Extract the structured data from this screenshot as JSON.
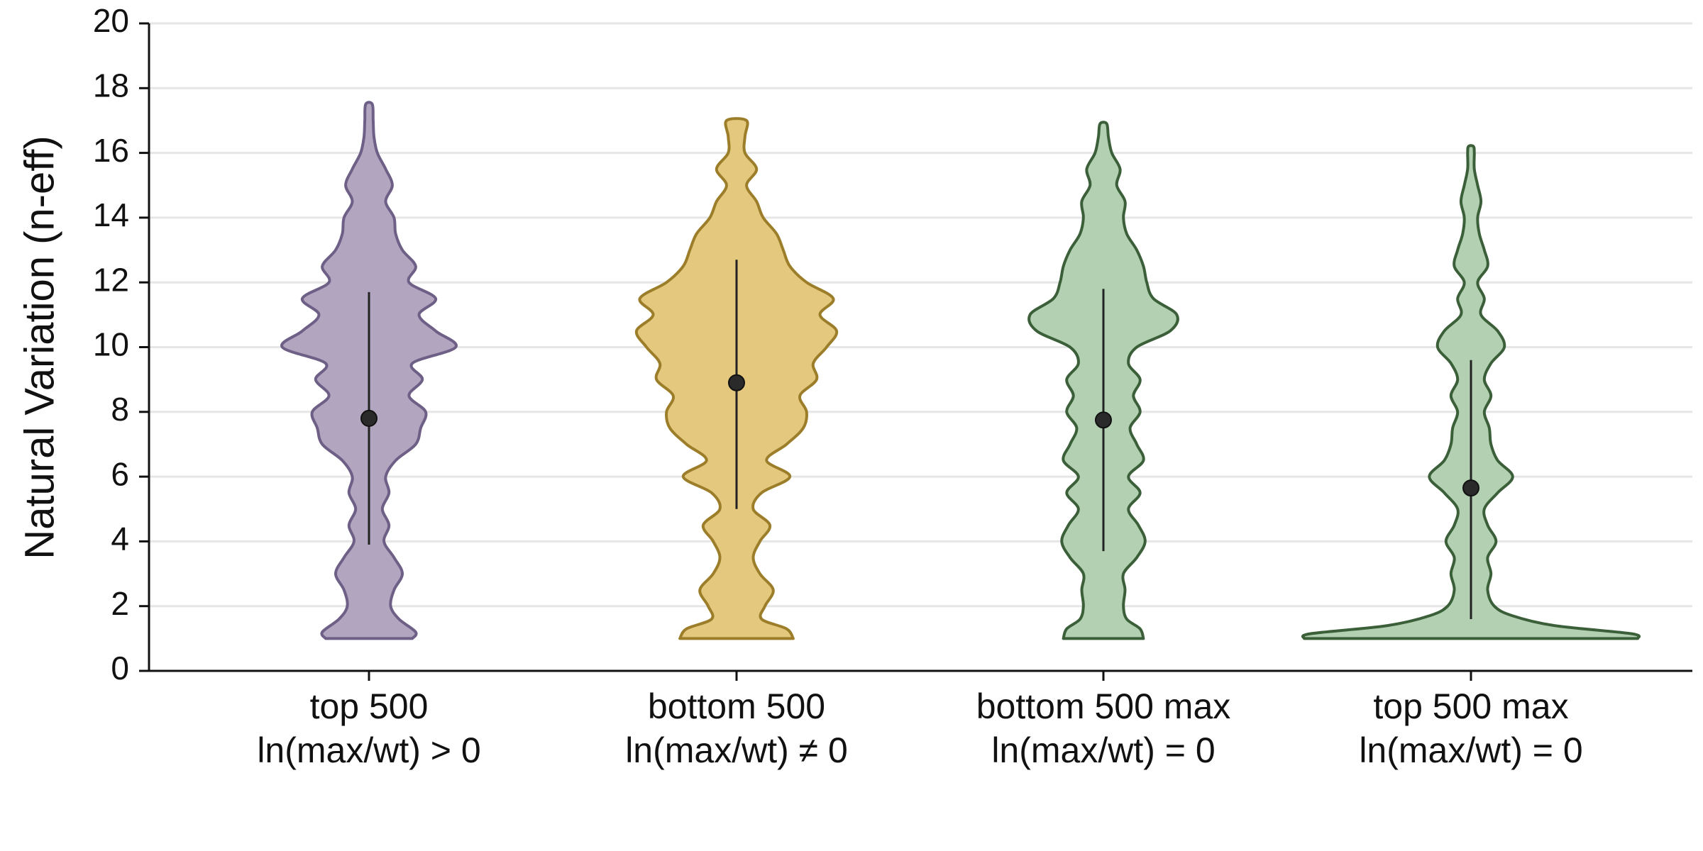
{
  "chart_data": {
    "type": "violin",
    "ylabel": "Natural Variation (n-eff)",
    "ylim": [
      0,
      20
    ],
    "yticks": [
      0,
      2,
      4,
      6,
      8,
      10,
      12,
      14,
      16,
      18,
      20
    ],
    "grid": true,
    "legend": "none",
    "series": [
      {
        "label_line1": "top 500",
        "label_line2": "ln(max/wt) > 0",
        "fill": "#b2a5c0",
        "edge": "#6e5f86",
        "median": 7.8,
        "whisker": [
          3.9,
          11.7
        ],
        "range": [
          1.0,
          17.5
        ],
        "profile": [
          [
            1.0,
            0.26
          ],
          [
            1.2,
            0.28
          ],
          [
            1.6,
            0.18
          ],
          [
            2.0,
            0.13
          ],
          [
            2.5,
            0.15
          ],
          [
            3.0,
            0.2
          ],
          [
            3.5,
            0.15
          ],
          [
            4.0,
            0.09
          ],
          [
            4.5,
            0.12
          ],
          [
            5.0,
            0.08
          ],
          [
            5.5,
            0.12
          ],
          [
            6.0,
            0.1
          ],
          [
            6.5,
            0.16
          ],
          [
            7.0,
            0.28
          ],
          [
            7.5,
            0.31
          ],
          [
            8.0,
            0.34
          ],
          [
            8.5,
            0.24
          ],
          [
            9.0,
            0.32
          ],
          [
            9.5,
            0.26
          ],
          [
            10.0,
            0.52
          ],
          [
            10.5,
            0.4
          ],
          [
            11.0,
            0.3
          ],
          [
            11.5,
            0.4
          ],
          [
            12.0,
            0.24
          ],
          [
            12.5,
            0.28
          ],
          [
            13.0,
            0.2
          ],
          [
            13.5,
            0.16
          ],
          [
            14.0,
            0.15
          ],
          [
            14.5,
            0.1
          ],
          [
            15.0,
            0.14
          ],
          [
            15.5,
            0.1
          ],
          [
            16.0,
            0.05
          ],
          [
            16.5,
            0.03
          ],
          [
            17.0,
            0.025
          ],
          [
            17.5,
            0.02
          ]
        ]
      },
      {
        "label_line1": "bottom 500",
        "label_line2": "ln(max/wt) ≠ 0",
        "fill": "#e3c87e",
        "edge": "#9c7e2a",
        "median": 8.9,
        "whisker": [
          5.0,
          12.7
        ],
        "range": [
          1.0,
          17.0
        ],
        "profile": [
          [
            1.0,
            0.34
          ],
          [
            1.3,
            0.3
          ],
          [
            1.6,
            0.15
          ],
          [
            2.0,
            0.17
          ],
          [
            2.5,
            0.22
          ],
          [
            3.0,
            0.14
          ],
          [
            3.5,
            0.1
          ],
          [
            4.0,
            0.14
          ],
          [
            4.5,
            0.2
          ],
          [
            5.0,
            0.1
          ],
          [
            5.5,
            0.15
          ],
          [
            6.0,
            0.32
          ],
          [
            6.5,
            0.18
          ],
          [
            7.0,
            0.3
          ],
          [
            7.5,
            0.4
          ],
          [
            8.0,
            0.42
          ],
          [
            8.5,
            0.38
          ],
          [
            9.0,
            0.48
          ],
          [
            9.5,
            0.46
          ],
          [
            10.0,
            0.54
          ],
          [
            10.5,
            0.6
          ],
          [
            11.0,
            0.5
          ],
          [
            11.5,
            0.58
          ],
          [
            12.0,
            0.42
          ],
          [
            12.5,
            0.32
          ],
          [
            13.0,
            0.28
          ],
          [
            13.5,
            0.24
          ],
          [
            14.0,
            0.16
          ],
          [
            14.5,
            0.12
          ],
          [
            15.0,
            0.06
          ],
          [
            15.5,
            0.12
          ],
          [
            16.0,
            0.05
          ],
          [
            16.5,
            0.05
          ],
          [
            17.0,
            0.06
          ]
        ]
      },
      {
        "label_line1": "bottom 500 max",
        "label_line2": "ln(max/wt) = 0",
        "fill": "#b3d1b2",
        "edge": "#3b5f38",
        "median": 7.75,
        "whisker": [
          3.7,
          11.8
        ],
        "range": [
          1.0,
          16.9
        ],
        "profile": [
          [
            1.0,
            0.24
          ],
          [
            1.3,
            0.22
          ],
          [
            1.6,
            0.14
          ],
          [
            2.0,
            0.12
          ],
          [
            2.5,
            0.13
          ],
          [
            3.0,
            0.12
          ],
          [
            3.5,
            0.2
          ],
          [
            4.0,
            0.25
          ],
          [
            4.5,
            0.21
          ],
          [
            5.0,
            0.15
          ],
          [
            5.5,
            0.22
          ],
          [
            6.0,
            0.15
          ],
          [
            6.5,
            0.24
          ],
          [
            7.0,
            0.2
          ],
          [
            7.5,
            0.16
          ],
          [
            8.0,
            0.22
          ],
          [
            8.5,
            0.18
          ],
          [
            9.0,
            0.22
          ],
          [
            9.5,
            0.15
          ],
          [
            10.0,
            0.2
          ],
          [
            10.5,
            0.4
          ],
          [
            11.0,
            0.44
          ],
          [
            11.5,
            0.3
          ],
          [
            12.0,
            0.26
          ],
          [
            12.5,
            0.24
          ],
          [
            13.0,
            0.2
          ],
          [
            13.5,
            0.14
          ],
          [
            14.0,
            0.12
          ],
          [
            14.5,
            0.13
          ],
          [
            15.0,
            0.08
          ],
          [
            15.5,
            0.1
          ],
          [
            16.0,
            0.05
          ],
          [
            16.5,
            0.03
          ],
          [
            16.9,
            0.02
          ]
        ]
      },
      {
        "label_line1": "top 500 max",
        "label_line2": "ln(max/wt) = 0",
        "fill": "#b3d1b2",
        "edge": "#3b5f38",
        "median": 5.65,
        "whisker": [
          1.6,
          9.6
        ],
        "range": [
          1.0,
          16.2
        ],
        "profile": [
          [
            1.0,
            1.0
          ],
          [
            1.15,
            0.96
          ],
          [
            1.4,
            0.5
          ],
          [
            1.7,
            0.25
          ],
          [
            2.0,
            0.14
          ],
          [
            2.5,
            0.1
          ],
          [
            3.0,
            0.12
          ],
          [
            3.5,
            0.1
          ],
          [
            4.0,
            0.15
          ],
          [
            4.5,
            0.1
          ],
          [
            5.0,
            0.08
          ],
          [
            5.5,
            0.16
          ],
          [
            6.0,
            0.25
          ],
          [
            6.5,
            0.16
          ],
          [
            7.0,
            0.12
          ],
          [
            7.5,
            0.11
          ],
          [
            8.0,
            0.08
          ],
          [
            8.5,
            0.12
          ],
          [
            9.0,
            0.08
          ],
          [
            9.5,
            0.12
          ],
          [
            10.0,
            0.2
          ],
          [
            10.5,
            0.16
          ],
          [
            11.0,
            0.06
          ],
          [
            11.5,
            0.08
          ],
          [
            12.0,
            0.04
          ],
          [
            12.5,
            0.1
          ],
          [
            13.0,
            0.08
          ],
          [
            13.5,
            0.05
          ],
          [
            14.0,
            0.04
          ],
          [
            14.5,
            0.06
          ],
          [
            15.0,
            0.04
          ],
          [
            15.5,
            0.02
          ],
          [
            16.0,
            0.02
          ],
          [
            16.2,
            0.015
          ]
        ]
      }
    ]
  }
}
